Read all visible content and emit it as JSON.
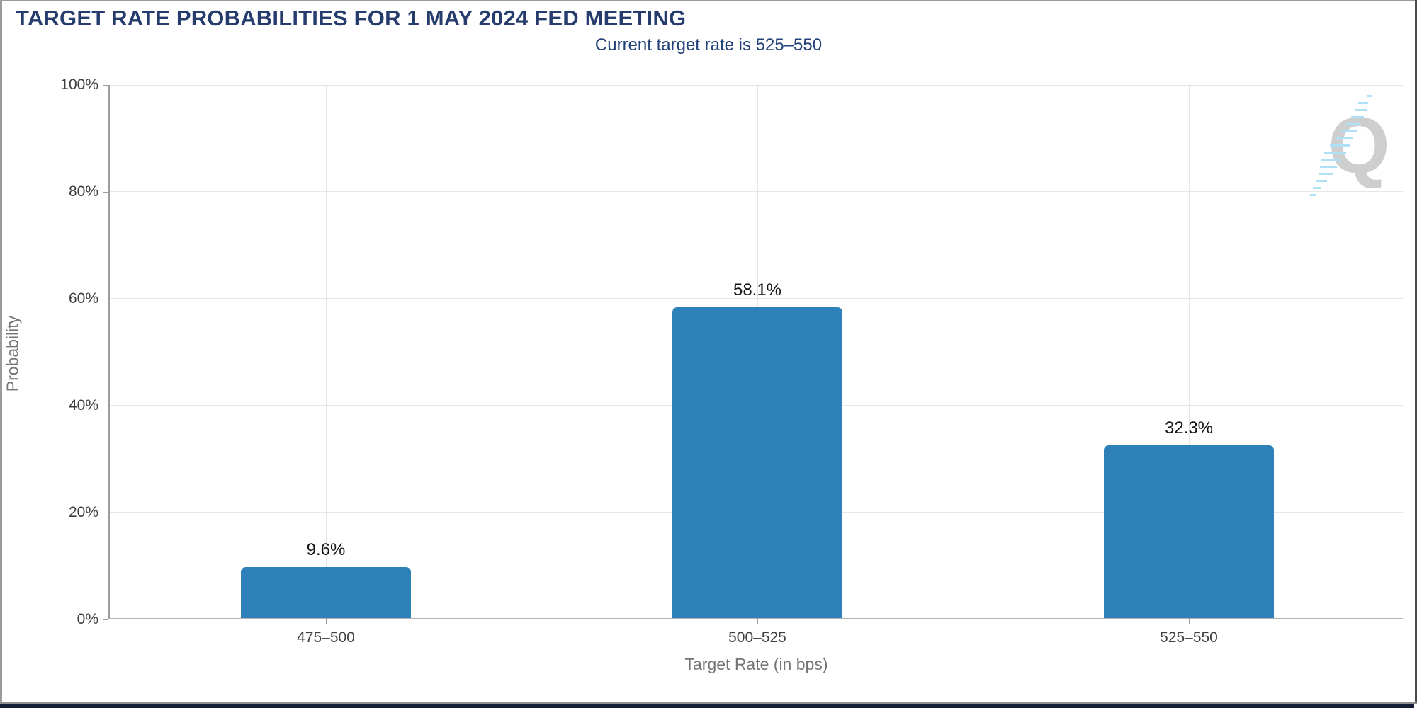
{
  "header": {
    "title": "TARGET RATE PROBABILITIES FOR 1 MAY 2024 FED MEETING",
    "subtitle": "Current target rate is 525–550"
  },
  "chart_data": {
    "type": "bar",
    "title": "TARGET RATE PROBABILITIES FOR 1 MAY 2024 FED MEETING",
    "subtitle": "Current target rate is 525–550",
    "categories": [
      "475–500",
      "500–525",
      "525–550"
    ],
    "values": [
      9.6,
      58.1,
      32.3
    ],
    "value_labels": [
      "9.6%",
      "58.1%",
      "32.3%"
    ],
    "xlabel": "Target Rate (in bps)",
    "ylabel": "Probability",
    "ylim": [
      0,
      100
    ],
    "yticks": [
      "0%",
      "20%",
      "40%",
      "60%",
      "80%",
      "100%"
    ],
    "grid": true,
    "legend": "none",
    "bar_color": "#2e80b9"
  },
  "colors": {
    "title_navy": "#253c6d",
    "subtitle_navy": "#24427a",
    "bar_blue": "#2e80b9",
    "gridline": "#e6e6e6",
    "axis_line": "#9c9c9c",
    "tick_label": "#3f3f3f",
    "axis_title": "#757575",
    "watermark_gray": "#c9c9c9",
    "watermark_blue": "#a6ddf6",
    "footer_strip": "#141d36"
  },
  "watermark": {
    "icon": "quandl-q-logo",
    "letter": "Q"
  }
}
